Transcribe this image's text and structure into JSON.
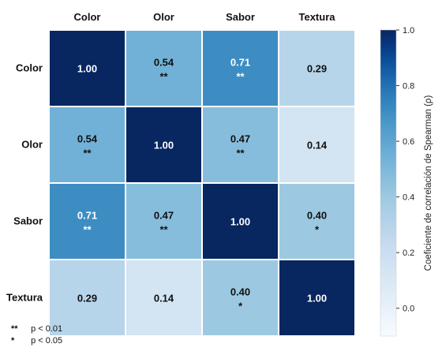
{
  "chart_data": {
    "type": "heatmap",
    "rows": [
      "Color",
      "Olor",
      "Sabor",
      "Textura"
    ],
    "columns": [
      "Color",
      "Olor",
      "Sabor",
      "Textura"
    ],
    "values": [
      [
        1.0,
        0.54,
        0.71,
        0.29
      ],
      [
        0.54,
        1.0,
        0.47,
        0.14
      ],
      [
        0.71,
        0.47,
        1.0,
        0.4
      ],
      [
        0.29,
        0.14,
        0.4,
        1.0
      ]
    ],
    "significance": [
      [
        "",
        "**",
        "**",
        ""
      ],
      [
        "**",
        "",
        "**",
        ""
      ],
      [
        "**",
        "**",
        "",
        "*"
      ],
      [
        "",
        "",
        "*",
        ""
      ]
    ],
    "colorbar": {
      "label": "Coeficiente de correlación de Spearman (ρ)",
      "range": [
        -0.1,
        1.0
      ],
      "ticks": [
        "1.0",
        "0.8",
        "0.6",
        "0.4",
        "0.2",
        "0.0"
      ],
      "colormap": "Blues"
    }
  },
  "legend": [
    {
      "symbol": "**",
      "text": "p < 0.01"
    },
    {
      "symbol": "*",
      "text": "p < 0.05"
    }
  ]
}
